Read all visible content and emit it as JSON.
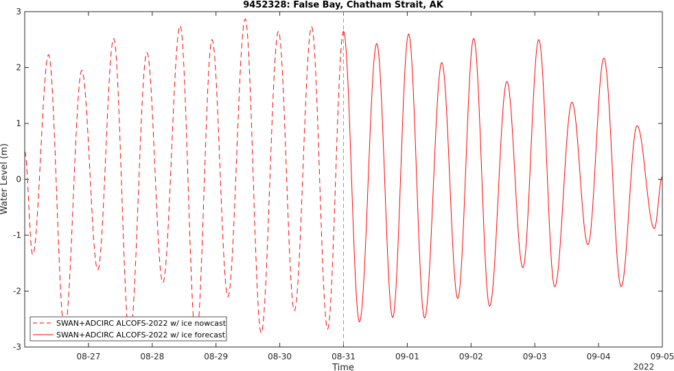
{
  "chart_data": {
    "type": "line",
    "title": "9452328: False Bay, Chatham Strait, AK",
    "xlabel": "Time",
    "ylabel": "Water Level (m)",
    "year_label": "2022",
    "xlim": [
      "2022-08-26 00:00",
      "2022-09-05 00:00"
    ],
    "ylim": [
      -3,
      3
    ],
    "yticks": [
      -3,
      -2,
      -1,
      0,
      1,
      2,
      3
    ],
    "xticks": [
      {
        "date": "2022-08-27",
        "label": "08-27"
      },
      {
        "date": "2022-08-28",
        "label": "08-28"
      },
      {
        "date": "2022-08-29",
        "label": "08-29"
      },
      {
        "date": "2022-08-30",
        "label": "08-30"
      },
      {
        "date": "2022-08-31",
        "label": "08-31"
      },
      {
        "date": "2022-09-01",
        "label": "09-01"
      },
      {
        "date": "2022-09-02",
        "label": "09-02"
      },
      {
        "date": "2022-09-03",
        "label": "09-03"
      },
      {
        "date": "2022-09-04",
        "label": "09-04"
      },
      {
        "date": "2022-09-05",
        "label": "09-05"
      }
    ],
    "divider_time": "2022-08-31 00:00",
    "color": "#ff0000",
    "legend_location": "bottom-left",
    "series": [
      {
        "name": "SWAN+ADCIRC ALCOFS-2022 w/ ice nowcast",
        "style": "dashed",
        "x": [
          "2022-08-26 00:00",
          "2022-08-26 03:00",
          "2022-08-26 09:00",
          "2022-08-26 15:00",
          "2022-08-26 21:30",
          "2022-08-27 03:30",
          "2022-08-27 09:30",
          "2022-08-27 15:30",
          "2022-08-27 22:00",
          "2022-08-28 04:00",
          "2022-08-28 10:30",
          "2022-08-28 16:30",
          "2022-08-28 22:30",
          "2022-08-29 04:30",
          "2022-08-29 11:00",
          "2022-08-29 17:00",
          "2022-08-29 23:30",
          "2022-08-30 05:30",
          "2022-08-30 12:00",
          "2022-08-30 18:00",
          "2022-08-31 00:00"
        ],
        "y": [
          0.5,
          -1.35,
          2.23,
          -2.7,
          1.95,
          -1.62,
          2.52,
          -2.85,
          2.27,
          -1.85,
          2.75,
          -2.88,
          2.5,
          -2.1,
          2.87,
          -2.75,
          2.65,
          -2.35,
          2.73,
          -2.68,
          2.65
        ]
      },
      {
        "name": "SWAN+ADCIRC ALCOFS-2022 w/ ice forecast",
        "style": "solid",
        "x": [
          "2022-08-31 00:00",
          "2022-08-31 06:00",
          "2022-08-31 12:30",
          "2022-08-31 18:30",
          "2022-09-01 00:30",
          "2022-09-01 06:30",
          "2022-09-01 13:00",
          "2022-09-01 19:00",
          "2022-09-02 01:00",
          "2022-09-02 07:00",
          "2022-09-02 13:30",
          "2022-09-02 19:30",
          "2022-09-03 01:30",
          "2022-09-03 07:30",
          "2022-09-03 14:00",
          "2022-09-03 20:00",
          "2022-09-04 02:00",
          "2022-09-04 08:30",
          "2022-09-04 14:30",
          "2022-09-04 21:00",
          "2022-09-05 00:00"
        ],
        "y": [
          2.65,
          -2.55,
          2.43,
          -2.47,
          2.6,
          -2.48,
          2.09,
          -2.13,
          2.52,
          -2.27,
          1.75,
          -1.58,
          2.5,
          -1.92,
          1.38,
          -1.17,
          2.17,
          -1.92,
          0.96,
          -0.88,
          0.05
        ]
      }
    ]
  }
}
